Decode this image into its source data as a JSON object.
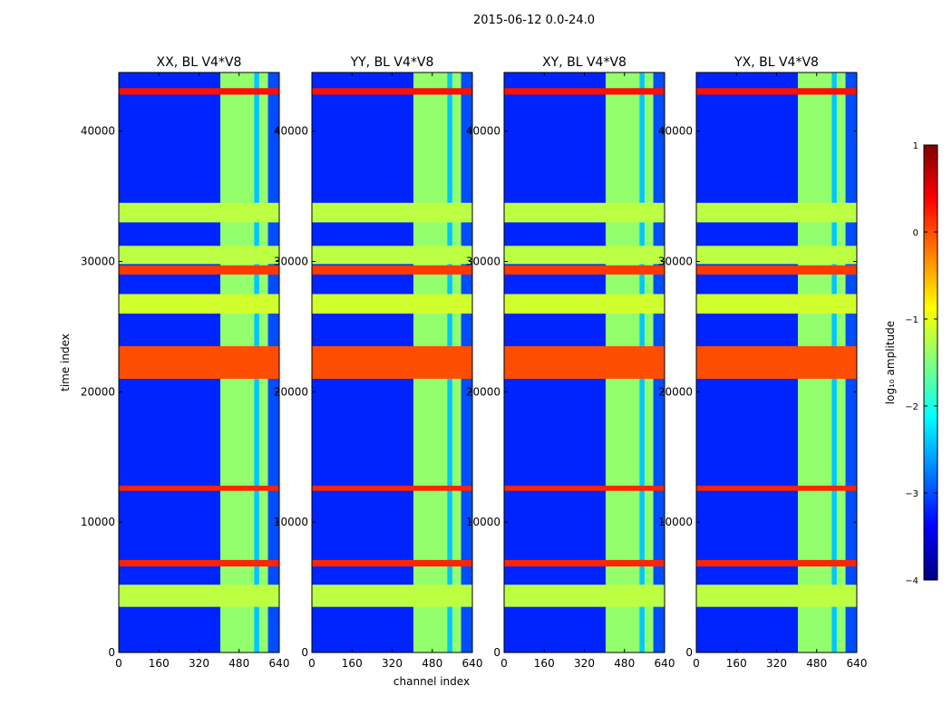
{
  "figure": {
    "suptitle": "2015-06-12 0.0-24.0",
    "xlabel": "channel index",
    "ylabel": "time index"
  },
  "colors": {
    "colormap": "jet",
    "stops": [
      "#000080",
      "#0000ff",
      "#0080ff",
      "#00ffff",
      "#80ff80",
      "#ffff00",
      "#ff8000",
      "#ff0000",
      "#800000"
    ]
  },
  "colorbar": {
    "label": "log₁₀ amplitude",
    "range": [
      -4,
      1
    ],
    "ticks": [
      1,
      0,
      -1,
      -2,
      -3,
      -4
    ],
    "tick_labels": [
      "1",
      "0",
      "−1",
      "−2",
      "−3",
      "−4"
    ]
  },
  "chart_data": [
    {
      "type": "heatmap",
      "title": "XX, BL V4*V8",
      "xlim": [
        0,
        640
      ],
      "ylim": [
        0,
        44500
      ],
      "xticks": [
        0,
        160,
        320,
        480,
        640
      ],
      "yticks": [
        0,
        10000,
        20000,
        30000,
        40000
      ],
      "xtick_labels": [
        "0",
        "160",
        "320",
        "480",
        "640"
      ],
      "ytick_labels": [
        "0",
        "10000",
        "20000",
        "30000",
        "40000"
      ],
      "background_log_amplitude": -3.2,
      "bands": [
        {
          "ch": [
            405,
            640
          ],
          "log_amplitude": -1.4
        },
        {
          "ch": [
            540,
            560
          ],
          "log_amplitude": -2.4
        },
        {
          "ch": [
            595,
            640
          ],
          "log_amplitude": -3.0
        }
      ],
      "rows": [
        {
          "t": [
            3500,
            5200
          ],
          "log_amplitude": -1.2
        },
        {
          "t": [
            6600,
            7100
          ],
          "log_amplitude": 0.2
        },
        {
          "t": [
            12400,
            12800
          ],
          "log_amplitude": 0.2
        },
        {
          "t": [
            21000,
            23500
          ],
          "log_amplitude": 0.0
        },
        {
          "t": [
            26000,
            27500
          ],
          "log_amplitude": -1.1
        },
        {
          "t": [
            29000,
            29700
          ],
          "log_amplitude": 0.1
        },
        {
          "t": [
            29800,
            31200
          ],
          "log_amplitude": -1.2
        },
        {
          "t": [
            33000,
            34500
          ],
          "log_amplitude": -1.2
        },
        {
          "t": [
            42800,
            43300
          ],
          "log_amplitude": 0.3
        }
      ]
    },
    {
      "type": "heatmap",
      "title": "YY, BL V4*V8",
      "xlim": [
        0,
        640
      ],
      "ylim": [
        0,
        44500
      ],
      "xticks": [
        0,
        160,
        320,
        480,
        640
      ],
      "yticks": [
        0,
        10000,
        20000,
        30000,
        40000
      ],
      "xtick_labels": [
        "0",
        "160",
        "320",
        "480",
        "640"
      ],
      "ytick_labels": [
        "0",
        "10000",
        "20000",
        "30000",
        "40000"
      ],
      "background_log_amplitude": -3.2,
      "bands": [
        {
          "ch": [
            405,
            640
          ],
          "log_amplitude": -1.4
        },
        {
          "ch": [
            540,
            560
          ],
          "log_amplitude": -2.4
        },
        {
          "ch": [
            595,
            640
          ],
          "log_amplitude": -3.0
        }
      ],
      "rows": [
        {
          "t": [
            3500,
            5200
          ],
          "log_amplitude": -1.2
        },
        {
          "t": [
            6600,
            7100
          ],
          "log_amplitude": 0.2
        },
        {
          "t": [
            12400,
            12800
          ],
          "log_amplitude": 0.2
        },
        {
          "t": [
            21000,
            23500
          ],
          "log_amplitude": 0.0
        },
        {
          "t": [
            26000,
            27500
          ],
          "log_amplitude": -1.1
        },
        {
          "t": [
            29000,
            29700
          ],
          "log_amplitude": 0.1
        },
        {
          "t": [
            29800,
            31200
          ],
          "log_amplitude": -1.2
        },
        {
          "t": [
            33000,
            34500
          ],
          "log_amplitude": -1.2
        },
        {
          "t": [
            42800,
            43300
          ],
          "log_amplitude": 0.3
        }
      ]
    },
    {
      "type": "heatmap",
      "title": "XY, BL V4*V8",
      "xlim": [
        0,
        640
      ],
      "ylim": [
        0,
        44500
      ],
      "xticks": [
        0,
        160,
        320,
        480,
        640
      ],
      "yticks": [
        0,
        10000,
        20000,
        30000,
        40000
      ],
      "xtick_labels": [
        "0",
        "160",
        "320",
        "480",
        "640"
      ],
      "ytick_labels": [
        "0",
        "10000",
        "20000",
        "30000",
        "40000"
      ],
      "background_log_amplitude": -3.2,
      "bands": [
        {
          "ch": [
            405,
            640
          ],
          "log_amplitude": -1.4
        },
        {
          "ch": [
            540,
            560
          ],
          "log_amplitude": -2.4
        },
        {
          "ch": [
            595,
            640
          ],
          "log_amplitude": -3.0
        }
      ],
      "rows": [
        {
          "t": [
            3500,
            5200
          ],
          "log_amplitude": -1.2
        },
        {
          "t": [
            6600,
            7100
          ],
          "log_amplitude": 0.2
        },
        {
          "t": [
            12400,
            12800
          ],
          "log_amplitude": 0.2
        },
        {
          "t": [
            21000,
            23500
          ],
          "log_amplitude": 0.0
        },
        {
          "t": [
            26000,
            27500
          ],
          "log_amplitude": -1.1
        },
        {
          "t": [
            29000,
            29700
          ],
          "log_amplitude": 0.1
        },
        {
          "t": [
            29800,
            31200
          ],
          "log_amplitude": -1.2
        },
        {
          "t": [
            33000,
            34500
          ],
          "log_amplitude": -1.2
        },
        {
          "t": [
            42800,
            43300
          ],
          "log_amplitude": 0.3
        }
      ]
    },
    {
      "type": "heatmap",
      "title": "YX, BL V4*V8",
      "xlim": [
        0,
        640
      ],
      "ylim": [
        0,
        44500
      ],
      "xticks": [
        0,
        160,
        320,
        480,
        640
      ],
      "yticks": [
        0,
        10000,
        20000,
        30000,
        40000
      ],
      "xtick_labels": [
        "0",
        "160",
        "320",
        "480",
        "640"
      ],
      "ytick_labels": [
        "0",
        "10000",
        "20000",
        "30000",
        "40000"
      ],
      "background_log_amplitude": -3.2,
      "bands": [
        {
          "ch": [
            405,
            640
          ],
          "log_amplitude": -1.4
        },
        {
          "ch": [
            540,
            560
          ],
          "log_amplitude": -2.4
        },
        {
          "ch": [
            595,
            640
          ],
          "log_amplitude": -3.0
        }
      ],
      "rows": [
        {
          "t": [
            3500,
            5200
          ],
          "log_amplitude": -1.2
        },
        {
          "t": [
            6600,
            7100
          ],
          "log_amplitude": 0.2
        },
        {
          "t": [
            12400,
            12800
          ],
          "log_amplitude": 0.2
        },
        {
          "t": [
            21000,
            23500
          ],
          "log_amplitude": 0.0
        },
        {
          "t": [
            26000,
            27500
          ],
          "log_amplitude": -1.1
        },
        {
          "t": [
            29000,
            29700
          ],
          "log_amplitude": 0.1
        },
        {
          "t": [
            29800,
            31200
          ],
          "log_amplitude": -1.2
        },
        {
          "t": [
            33000,
            34500
          ],
          "log_amplitude": -1.2
        },
        {
          "t": [
            42800,
            43300
          ],
          "log_amplitude": 0.3
        }
      ]
    }
  ]
}
